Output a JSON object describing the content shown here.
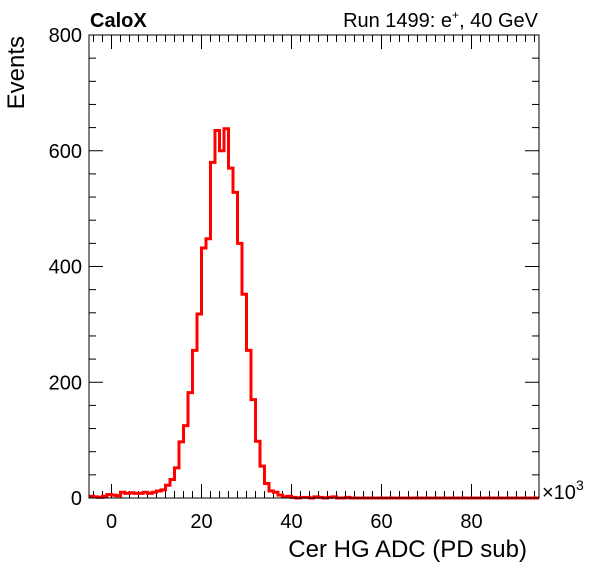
{
  "header": {
    "left": "CaloX",
    "right_prefix": "Run 1499: e",
    "right_sup": "+",
    "right_suffix": ", 40 GeV"
  },
  "chart_data": {
    "type": "histogram",
    "title": "",
    "xlabel": "Cer HG ADC (PD sub)",
    "ylabel": "Events",
    "x_multiplier_base": "×10",
    "x_multiplier_exp": "3",
    "xlim": [
      -5,
      95
    ],
    "ylim": [
      0,
      800
    ],
    "x_ticks": [
      0,
      20,
      40,
      60,
      80
    ],
    "y_ticks": [
      0,
      200,
      400,
      600,
      800
    ],
    "bin_width": 1,
    "series": [
      {
        "color": "#ff0000",
        "bin_starts": [
          -5,
          -4,
          -3,
          -2,
          -1,
          0,
          1,
          2,
          3,
          4,
          5,
          6,
          7,
          8,
          9,
          10,
          11,
          12,
          13,
          14,
          15,
          16,
          17,
          18,
          19,
          20,
          21,
          22,
          23,
          24,
          25,
          26,
          27,
          28,
          29,
          30,
          31,
          32,
          33,
          34,
          35,
          36,
          37,
          38,
          39,
          40,
          41,
          42,
          43,
          44,
          45,
          46,
          47,
          48,
          49,
          50,
          51,
          52,
          53
        ],
        "counts": [
          3,
          2,
          1,
          3,
          6,
          5,
          4,
          10,
          8,
          9,
          8,
          8,
          10,
          8,
          10,
          12,
          14,
          22,
          32,
          52,
          97,
          125,
          182,
          255,
          318,
          432,
          448,
          580,
          635,
          600,
          638,
          570,
          528,
          440,
          352,
          255,
          170,
          98,
          55,
          25,
          12,
          10,
          5,
          2,
          3,
          1,
          0,
          1,
          1,
          0,
          2,
          1,
          0,
          1,
          2,
          0,
          0,
          1,
          0
        ]
      }
    ]
  }
}
